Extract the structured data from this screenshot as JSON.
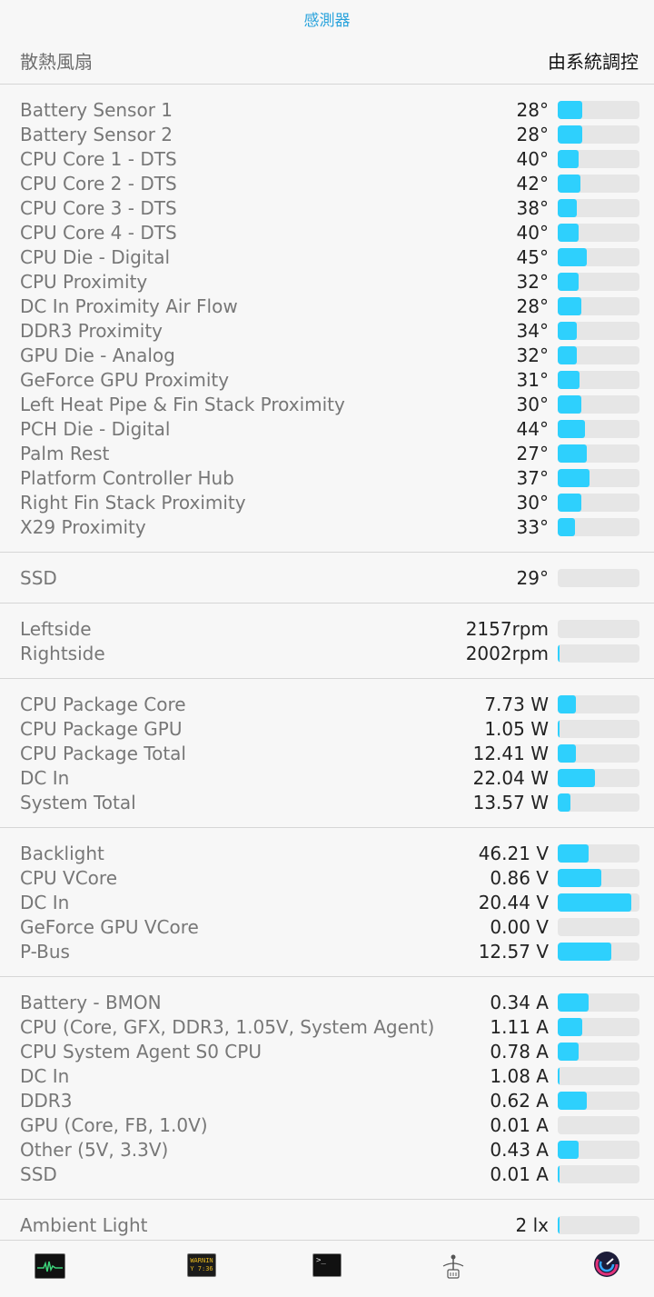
{
  "header": {
    "title": "感測器"
  },
  "fan_control": {
    "label": "散熱風扇",
    "value": "由系統調控"
  },
  "sections": [
    {
      "rows": [
        {
          "name": "Battery Sensor 1",
          "value": "28°",
          "level": 0.3
        },
        {
          "name": "Battery Sensor 2",
          "value": "28°",
          "level": 0.3
        },
        {
          "name": "CPU Core 1 - DTS",
          "value": "40°",
          "level": 0.25
        },
        {
          "name": "CPU Core 2 - DTS",
          "value": "42°",
          "level": 0.28
        },
        {
          "name": "CPU Core 3 - DTS",
          "value": "38°",
          "level": 0.23
        },
        {
          "name": "CPU Core 4 - DTS",
          "value": "40°",
          "level": 0.25
        },
        {
          "name": "CPU Die - Digital",
          "value": "45°",
          "level": 0.35
        },
        {
          "name": "CPU Proximity",
          "value": "32°",
          "level": 0.25
        },
        {
          "name": "DC In Proximity Air Flow",
          "value": "28°",
          "level": 0.29
        },
        {
          "name": "DDR3 Proximity",
          "value": "34°",
          "level": 0.23
        },
        {
          "name": "GPU Die - Analog",
          "value": "32°",
          "level": 0.23
        },
        {
          "name": "GeForce GPU Proximity",
          "value": "31°",
          "level": 0.27
        },
        {
          "name": "Left Heat Pipe & Fin Stack Proximity",
          "value": "30°",
          "level": 0.29
        },
        {
          "name": "PCH Die - Digital",
          "value": "44°",
          "level": 0.33
        },
        {
          "name": "Palm Rest",
          "value": "27°",
          "level": 0.35
        },
        {
          "name": "Platform Controller Hub",
          "value": "37°",
          "level": 0.39
        },
        {
          "name": "Right Fin Stack Proximity",
          "value": "30°",
          "level": 0.29
        },
        {
          "name": "X29 Proximity",
          "value": "33°",
          "level": 0.21
        }
      ]
    },
    {
      "rows": [
        {
          "name": "SSD",
          "value": "29°",
          "level": 0.0
        }
      ]
    },
    {
      "rows": [
        {
          "name": "Leftside",
          "value": "2157rpm",
          "level": 0.0
        },
        {
          "name": "Rightside",
          "value": "2002rpm",
          "level": 0.02
        }
      ]
    },
    {
      "rows": [
        {
          "name": "CPU Package Core",
          "value": "7.73 W",
          "level": 0.22
        },
        {
          "name": "CPU Package GPU",
          "value": "1.05 W",
          "level": 0.03
        },
        {
          "name": "CPU Package Total",
          "value": "12.41 W",
          "level": 0.22
        },
        {
          "name": "DC In",
          "value": "22.04 W",
          "level": 0.45
        },
        {
          "name": "System Total",
          "value": "13.57 W",
          "level": 0.15
        }
      ]
    },
    {
      "rows": [
        {
          "name": "Backlight",
          "value": "46.21 V",
          "level": 0.38
        },
        {
          "name": "CPU VCore",
          "value": "0.86 V",
          "level": 0.53
        },
        {
          "name": "DC In",
          "value": "20.44 V",
          "level": 0.9
        },
        {
          "name": "GeForce GPU VCore",
          "value": "0.00 V",
          "level": 0.0
        },
        {
          "name": "P-Bus",
          "value": "12.57 V",
          "level": 0.66
        }
      ]
    },
    {
      "rows": [
        {
          "name": "Battery - BMON",
          "value": "0.34 A",
          "level": 0.38
        },
        {
          "name": "CPU (Core, GFX, DDR3, 1.05V, System Agent)",
          "value": "1.11 A",
          "level": 0.3
        },
        {
          "name": "CPU System Agent S0 CPU",
          "value": "0.78 A",
          "level": 0.25
        },
        {
          "name": "DC In",
          "value": "1.08 A",
          "level": 0.02
        },
        {
          "name": "DDR3",
          "value": "0.62 A",
          "level": 0.35
        },
        {
          "name": "GPU (Core, FB, 1.0V)",
          "value": "0.01 A",
          "level": 0.0
        },
        {
          "name": "Other (5V, 3.3V)",
          "value": "0.43 A",
          "level": 0.25
        },
        {
          "name": "SSD",
          "value": "0.01 A",
          "level": 0.02
        }
      ]
    },
    {
      "rows": [
        {
          "name": "Ambient Light",
          "value": "2 lx",
          "level": 0.02
        }
      ]
    }
  ],
  "tabbar": {
    "console_text": "WARNIN\nY 7:36",
    "terminal_text": ">_",
    "icons": [
      "activity-monitor-icon",
      "console-icon",
      "terminal-icon",
      "usb-icon",
      "istat-icon"
    ]
  },
  "colors": {
    "accent": "#2aa3dc",
    "bar_fill": "#2ed0fd",
    "bar_track": "#e6e6e6"
  }
}
